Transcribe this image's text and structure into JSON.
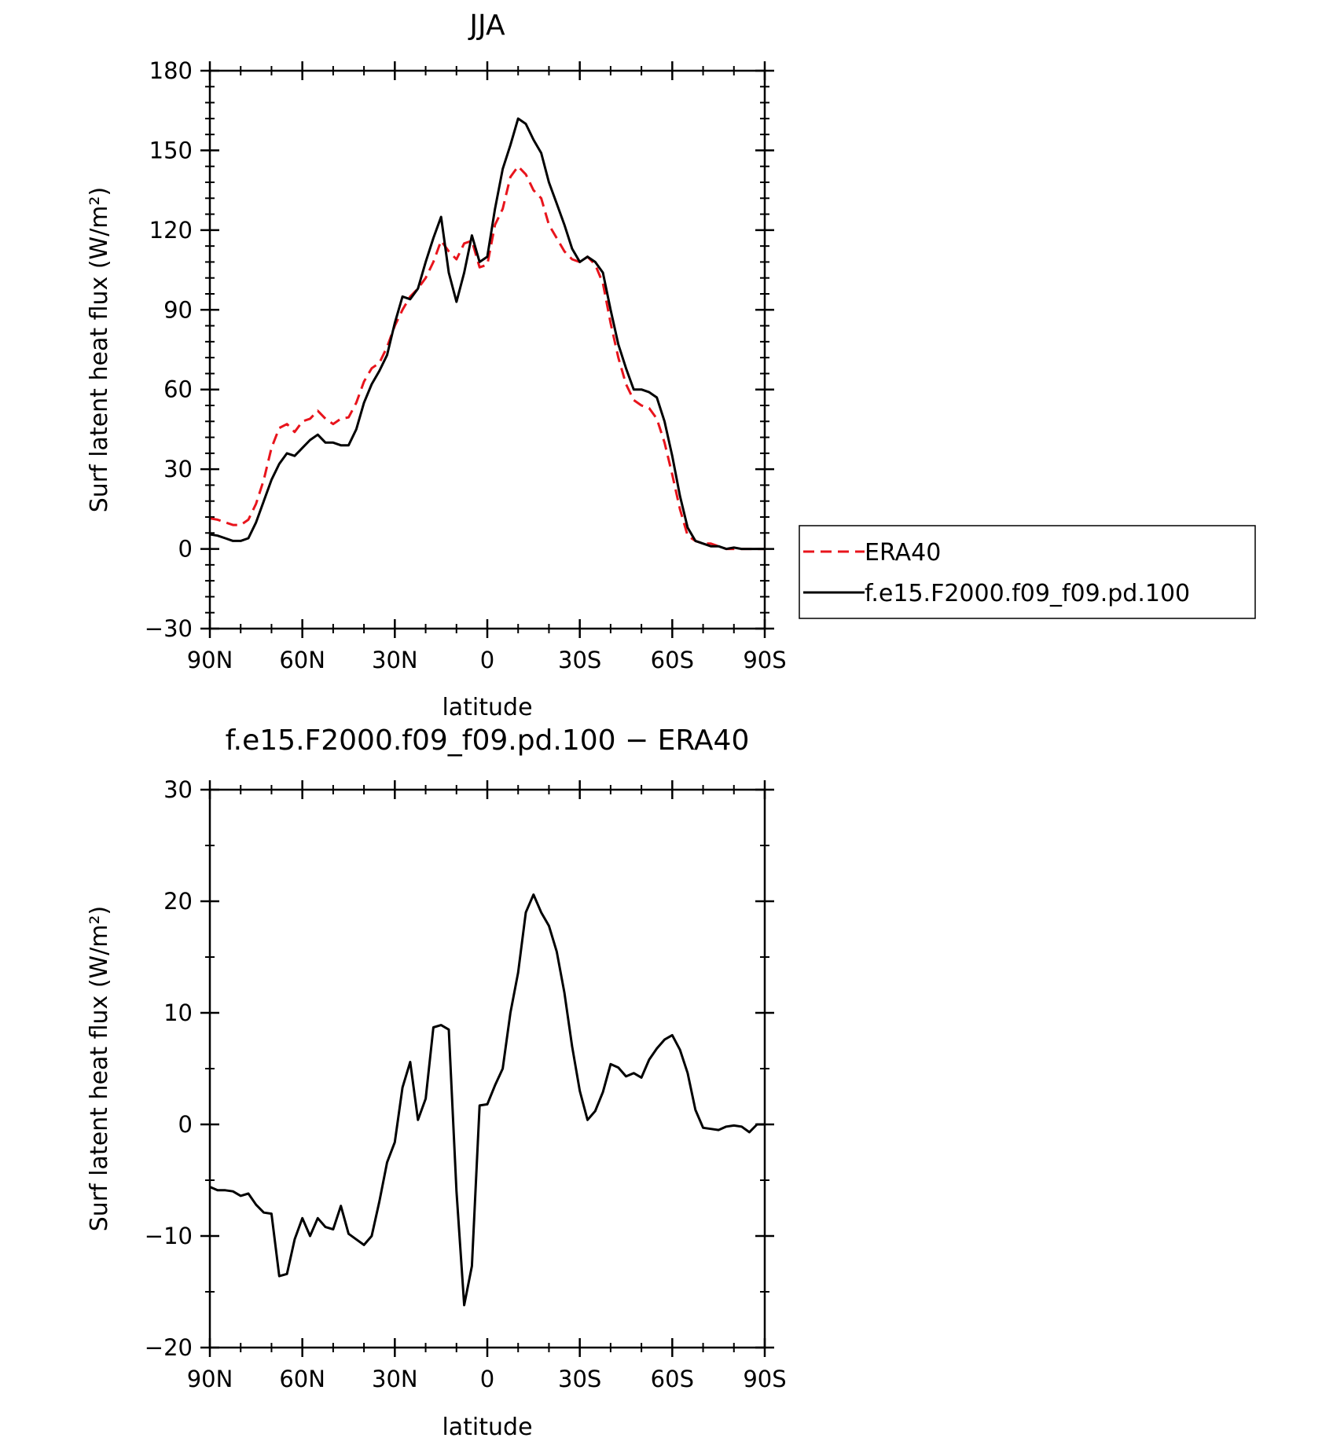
{
  "chart_data": [
    {
      "type": "line",
      "title": "JJA",
      "xlabel": "latitude",
      "ylabel": "Surf latent heat flux (W/m²)",
      "ylim": [
        -30,
        180
      ],
      "yticks": [
        -30,
        0,
        30,
        60,
        90,
        120,
        150,
        180
      ],
      "xlim": [
        90,
        -90
      ],
      "xticks": [
        {
          "value": 90,
          "label": "90N"
        },
        {
          "value": 60,
          "label": "60N"
        },
        {
          "value": 30,
          "label": "30N"
        },
        {
          "value": 0,
          "label": "0"
        },
        {
          "value": -30,
          "label": "30S"
        },
        {
          "value": -60,
          "label": "60S"
        },
        {
          "value": -90,
          "label": "90S"
        }
      ],
      "legend": {
        "placement": "right",
        "entries": [
          {
            "name": "ERA40",
            "color": "#e8141c",
            "dash": "dashed"
          },
          {
            "name": "f.e15.F2000.f09_f09.pd.100",
            "color": "#000000",
            "dash": "solid"
          }
        ]
      },
      "series": [
        {
          "name": "ERA40",
          "color": "#e8141c",
          "dash": "dashed",
          "x": [
            90,
            87.5,
            85,
            82.5,
            80,
            77.5,
            75,
            72.5,
            70,
            67.5,
            65,
            62.5,
            60,
            57.5,
            55,
            52.5,
            50,
            47.5,
            45,
            42.5,
            40,
            37.5,
            35,
            32.5,
            30,
            27.5,
            25,
            22.5,
            20,
            17.5,
            15,
            12.5,
            10,
            7.5,
            5,
            2.5,
            0,
            -2.5,
            -5,
            -7.5,
            -10,
            -12.5,
            -15,
            -17.5,
            -20,
            -22.5,
            -25,
            -27.5,
            -30,
            -32.5,
            -35,
            -37.5,
            -40,
            -42.5,
            -45,
            -47.5,
            -50,
            -52.5,
            -55,
            -57.5,
            -60,
            -62.5,
            -65,
            -67.5,
            -70,
            -72.5,
            -75,
            -77.5,
            -80,
            -82.5,
            -85,
            -87.5,
            -90
          ],
          "y": [
            11.5,
            11,
            10,
            9,
            9,
            11,
            17,
            26,
            38,
            45.5,
            47,
            44,
            48,
            49,
            52,
            49,
            47,
            49,
            49.5,
            55,
            63,
            68,
            70,
            76,
            84,
            90,
            95,
            98,
            102,
            108,
            116,
            112,
            109,
            115,
            116,
            106,
            107,
            122,
            128,
            140,
            144,
            141,
            135,
            132,
            122,
            117,
            112,
            109,
            108,
            110,
            107,
            100,
            85,
            72,
            62,
            56,
            54,
            53,
            49,
            40,
            28,
            15,
            5,
            3,
            2,
            2,
            1,
            0,
            0,
            0,
            0,
            0,
            0
          ]
        },
        {
          "name": "f.e15.F2000.f09_f09.pd.100",
          "color": "#000000",
          "dash": "solid",
          "x": [
            90,
            87.5,
            85,
            82.5,
            80,
            77.5,
            75,
            72.5,
            70,
            67.5,
            65,
            62.5,
            60,
            57.5,
            55,
            52.5,
            50,
            47.5,
            45,
            42.5,
            40,
            37.5,
            35,
            32.5,
            30,
            27.5,
            25,
            22.5,
            20,
            17.5,
            15,
            12.5,
            10,
            7.5,
            5,
            2.5,
            0,
            -2.5,
            -5,
            -7.5,
            -10,
            -12.5,
            -15,
            -17.5,
            -20,
            -22.5,
            -25,
            -27.5,
            -30,
            -32.5,
            -35,
            -37.5,
            -40,
            -42.5,
            -45,
            -47.5,
            -50,
            -52.5,
            -55,
            -57.5,
            -60,
            -62.5,
            -65,
            -67.5,
            -70,
            -72.5,
            -75,
            -77.5,
            -80,
            -82.5,
            -85,
            -87.5,
            -90
          ],
          "y": [
            5.5,
            5,
            4,
            3,
            3,
            4,
            10,
            18,
            26,
            32,
            36,
            35,
            38,
            41,
            43,
            40,
            40,
            39,
            39,
            45,
            55,
            62,
            67,
            73,
            85,
            95,
            94,
            98,
            108,
            117,
            125,
            104,
            93,
            104,
            118,
            108,
            110,
            128,
            143,
            152,
            162,
            160,
            154,
            149,
            138,
            130,
            122,
            113,
            108,
            110,
            108,
            104,
            90,
            77,
            68,
            60,
            60,
            59,
            57,
            48,
            35,
            20,
            8,
            3,
            2,
            1,
            1,
            0,
            0.5,
            0,
            0,
            0,
            0
          ]
        }
      ]
    },
    {
      "type": "line",
      "title": "f.e15.F2000.f09_f09.pd.100 − ERA40",
      "xlabel": "latitude",
      "ylabel": "Surf latent heat flux (W/m²)",
      "ylim": [
        -20,
        30
      ],
      "yticks": [
        -20,
        -10,
        0,
        10,
        20,
        30
      ],
      "xlim": [
        90,
        -90
      ],
      "xticks": [
        {
          "value": 90,
          "label": "90N"
        },
        {
          "value": 60,
          "label": "60N"
        },
        {
          "value": 30,
          "label": "30N"
        },
        {
          "value": 0,
          "label": "0"
        },
        {
          "value": -30,
          "label": "30S"
        },
        {
          "value": -60,
          "label": "60S"
        },
        {
          "value": -90,
          "label": "90S"
        }
      ],
      "series": [
        {
          "color": "#000000",
          "dash": "solid",
          "x": [
            90,
            87.5,
            85,
            82.5,
            80,
            77.5,
            75,
            72.5,
            70,
            67.5,
            65,
            62.5,
            60,
            57.5,
            55,
            52.5,
            50,
            47.5,
            45,
            42.5,
            40,
            37.5,
            35,
            32.5,
            30,
            27.5,
            25,
            22.5,
            20,
            17.5,
            15,
            12.5,
            10,
            7.5,
            5,
            2.5,
            0,
            -2.5,
            -5,
            -7.5,
            -10,
            -12.5,
            -15,
            -17.5,
            -20,
            -22.5,
            -25,
            -27.5,
            -30,
            -32.5,
            -35,
            -37.5,
            -40,
            -42.5,
            -45,
            -47.5,
            -50,
            -52.5,
            -55,
            -57.5,
            -60,
            -62.5,
            -65,
            -67.5,
            -70,
            -72.5,
            -75,
            -77.5,
            -80,
            -82.5,
            -85,
            -87.5,
            -90
          ],
          "y": [
            -5.6,
            -5.9,
            -5.9,
            -6.0,
            -6.4,
            -6.2,
            -7.2,
            -7.9,
            -8.0,
            -13.6,
            -13.4,
            -10.3,
            -8.4,
            -10.0,
            -8.4,
            -9.2,
            -9.4,
            -7.3,
            -9.8,
            -10.3,
            -10.8,
            -10.0,
            -6.9,
            -3.4,
            -1.6,
            3.3,
            5.6,
            0.4,
            2.3,
            8.7,
            8.9,
            8.5,
            -6.0,
            -16.2,
            -12.7,
            1.7,
            1.8,
            3.5,
            5.0,
            10.0,
            13.6,
            19.0,
            20.6,
            19.0,
            17.8,
            15.5,
            11.8,
            7.0,
            3.0,
            0.4,
            1.2,
            2.9,
            5.4,
            5.1,
            4.3,
            4.6,
            4.2,
            5.8,
            6.8,
            7.6,
            8.0,
            6.7,
            4.6,
            1.3,
            -0.3,
            -0.4,
            -0.5,
            -0.2,
            -0.1,
            -0.2,
            -0.7,
            0.0,
            0.0
          ]
        }
      ]
    }
  ]
}
